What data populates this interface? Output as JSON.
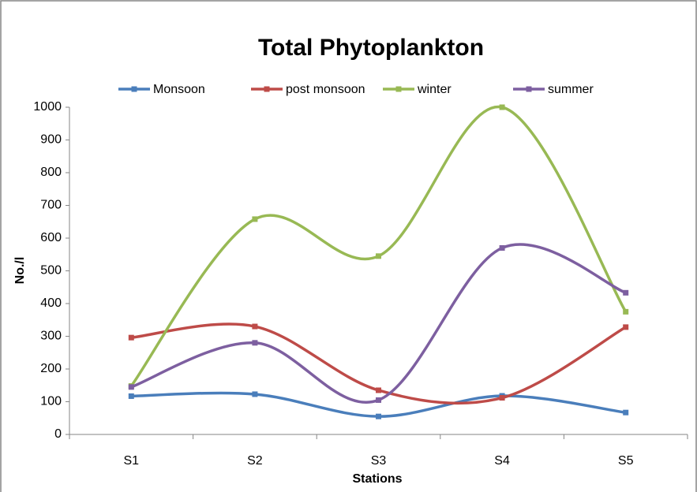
{
  "chart_data": {
    "type": "line",
    "title": "Total Phytoplankton",
    "x_label": "Stations",
    "y_label": "No./l",
    "categories": [
      "S1",
      "S2",
      "S3",
      "S4",
      "S5"
    ],
    "series": [
      {
        "name": "Monsoon",
        "color": "#4a7ebb",
        "values": [
          117,
          123,
          55,
          118,
          67
        ]
      },
      {
        "name": "post monsoon",
        "color": "#be4b48",
        "values": [
          296,
          330,
          135,
          112,
          328
        ]
      },
      {
        "name": "winter",
        "color": "#98b954",
        "values": [
          148,
          658,
          545,
          1000,
          375
        ]
      },
      {
        "name": "summer",
        "color": "#7d5fa0",
        "values": [
          145,
          280,
          105,
          570,
          433
        ]
      }
    ],
    "ylim": [
      0,
      1000
    ],
    "yticks": [
      0,
      100,
      200,
      300,
      400,
      500,
      600,
      700,
      800,
      900,
      1000
    ],
    "smooth": true,
    "legend": "top"
  }
}
